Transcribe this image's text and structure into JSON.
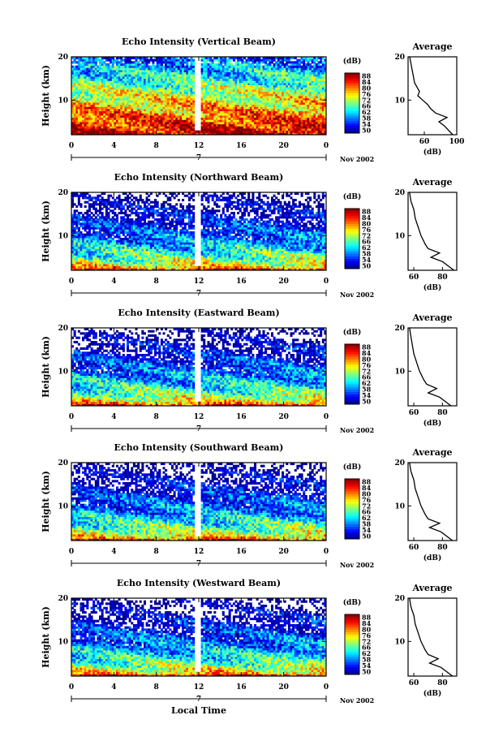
{
  "figure": {
    "xlabel": "Local Time",
    "date_label": "Nov 2002",
    "day_label": "7",
    "colorbar_unit": "(dB)",
    "colorbar_ticks": [
      "50",
      "54",
      "58",
      "62",
      "66",
      "72",
      "76",
      "80",
      "84",
      "88"
    ],
    "avg_title": "Average",
    "avg_xlabel": "(dB)"
  },
  "chart_data": [
    {
      "type": "heatmap",
      "title": "Echo Intensity (Vertical Beam)",
      "ylabel": "Height (km)",
      "x_ticks": [
        "0",
        "4",
        "8",
        "12",
        "16",
        "20",
        "0"
      ],
      "y_ticks": [
        "20",
        "10"
      ],
      "xlim": [
        0,
        24
      ],
      "ylim": [
        2,
        20
      ],
      "zlim": [
        50,
        88
      ],
      "avg_profile": {
        "xlim": [
          40,
          100
        ],
        "x_ticks": [
          "60",
          "100"
        ],
        "heights": [
          2,
          4,
          5,
          6,
          7,
          8,
          9,
          10,
          11,
          12,
          14,
          16,
          18,
          20
        ],
        "values": [
          95,
          85,
          78,
          88,
          74,
          68,
          64,
          58,
          52,
          54,
          48,
          46,
          44,
          42
        ]
      }
    },
    {
      "type": "heatmap",
      "title": "Echo Intensity (Northward Beam)",
      "ylabel": "Height (km)",
      "x_ticks": [
        "0",
        "4",
        "8",
        "12",
        "16",
        "20",
        "0"
      ],
      "y_ticks": [
        "20",
        "10"
      ],
      "xlim": [
        0,
        24
      ],
      "ylim": [
        2,
        20
      ],
      "zlim": [
        50,
        88
      ],
      "avg_profile": {
        "xlim": [
          56,
          90
        ],
        "x_ticks": [
          "60",
          "80"
        ],
        "heights": [
          2,
          4,
          5,
          6,
          7,
          8,
          10,
          12,
          14,
          16,
          18,
          20
        ],
        "values": [
          88,
          80,
          72,
          78,
          70,
          68,
          65,
          63,
          61,
          60,
          58,
          57
        ]
      }
    },
    {
      "type": "heatmap",
      "title": "Echo Intensity (Eastward Beam)",
      "ylabel": "Height (km)",
      "x_ticks": [
        "0",
        "4",
        "8",
        "12",
        "16",
        "20",
        "0"
      ],
      "y_ticks": [
        "20",
        "10"
      ],
      "xlim": [
        0,
        24
      ],
      "ylim": [
        2,
        20
      ],
      "zlim": [
        50,
        88
      ],
      "avg_profile": {
        "xlim": [
          56,
          90
        ],
        "x_ticks": [
          "60",
          "80"
        ],
        "heights": [
          2,
          4,
          5,
          6,
          7,
          8,
          10,
          12,
          14,
          16,
          18,
          20
        ],
        "values": [
          86,
          78,
          70,
          76,
          69,
          67,
          64,
          62,
          60,
          59,
          58,
          57
        ]
      }
    },
    {
      "type": "heatmap",
      "title": "Echo Intensity (Southward Beam)",
      "ylabel": "Height (km)",
      "x_ticks": [
        "0",
        "4",
        "8",
        "12",
        "16",
        "20",
        "0"
      ],
      "y_ticks": [
        "20",
        "10"
      ],
      "xlim": [
        0,
        24
      ],
      "ylim": [
        2,
        20
      ],
      "zlim": [
        50,
        88
      ],
      "avg_profile": {
        "xlim": [
          56,
          90
        ],
        "x_ticks": [
          "60",
          "80"
        ],
        "heights": [
          2,
          4,
          5,
          6,
          7,
          8,
          10,
          12,
          14,
          16,
          18,
          20
        ],
        "values": [
          87,
          79,
          71,
          78,
          70,
          68,
          65,
          63,
          61,
          60,
          58,
          57
        ]
      }
    },
    {
      "type": "heatmap",
      "title": "Echo Intensity (Westward Beam)",
      "ylabel": "Height (km)",
      "x_ticks": [
        "0",
        "4",
        "8",
        "12",
        "16",
        "20",
        "0"
      ],
      "y_ticks": [
        "20",
        "10"
      ],
      "xlim": [
        0,
        24
      ],
      "ylim": [
        2,
        20
      ],
      "zlim": [
        50,
        88
      ],
      "avg_profile": {
        "xlim": [
          56,
          90
        ],
        "x_ticks": [
          "60",
          "80"
        ],
        "heights": [
          2,
          4,
          5,
          6,
          7,
          8,
          10,
          12,
          14,
          16,
          18,
          20
        ],
        "values": [
          87,
          79,
          71,
          77,
          70,
          68,
          65,
          63,
          61,
          60,
          58,
          57
        ]
      }
    }
  ]
}
